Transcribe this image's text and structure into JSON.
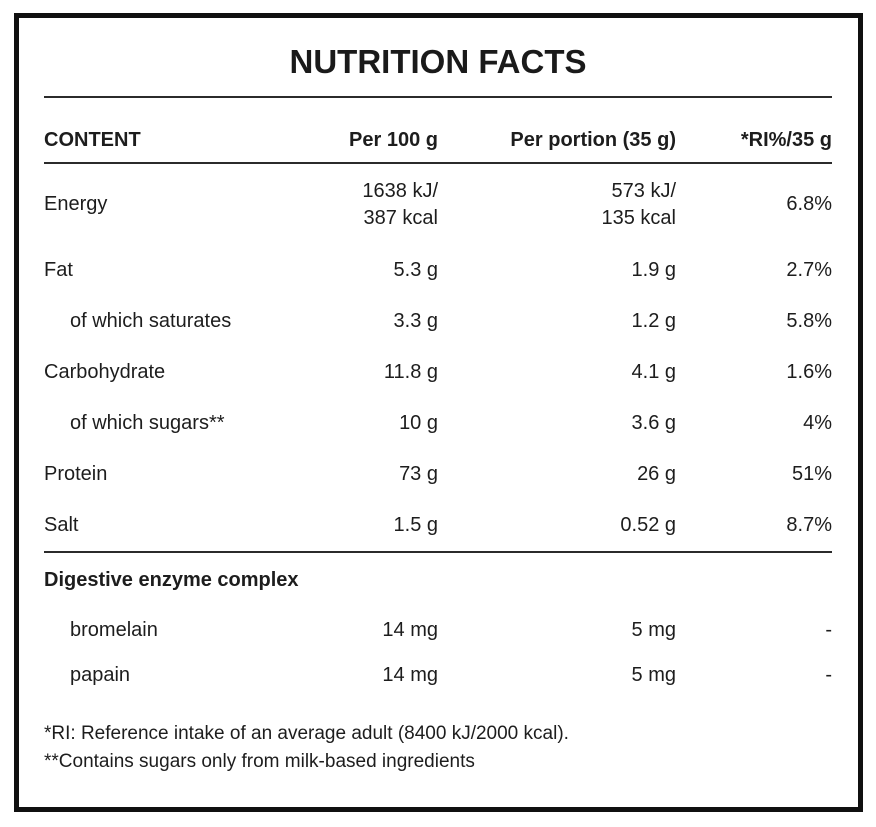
{
  "title": "NUTRITION FACTS",
  "colors": {
    "background": "#ffffff",
    "text": "#1d1d1d",
    "border": "#101010",
    "rule": "#2b2b2b"
  },
  "table": {
    "headers": [
      "CONTENT",
      "Per 100 g",
      "Per portion (35 g)",
      "*RI%/35 g"
    ],
    "rows": [
      {
        "label": "Energy",
        "per100": "1638 kJ/\n387 kcal",
        "portion": "573 kJ/\n135 kcal",
        "ri": "6.8%"
      },
      {
        "label": "Fat",
        "per100": "5.3 g",
        "portion": "1.9 g",
        "ri": "2.7%"
      },
      {
        "label": "of which saturates",
        "per100": "3.3 g",
        "portion": "1.2 g",
        "ri": "5.8%"
      },
      {
        "label": "Carbohydrate",
        "per100": "11.8 g",
        "portion": "4.1 g",
        "ri": "1.6%"
      },
      {
        "label": "of which sugars**",
        "per100": "10 g",
        "portion": "3.6 g",
        "ri": "4%"
      },
      {
        "label": "Protein",
        "per100": "73 g",
        "portion": "26 g",
        "ri": "51%"
      },
      {
        "label": "Salt",
        "per100": "1.5 g",
        "portion": "0.52 g",
        "ri": "8.7%"
      }
    ],
    "section": {
      "title": "Digestive enzyme complex",
      "rows": [
        {
          "label": "bromelain",
          "per100": "14 mg",
          "portion": "5 mg",
          "ri": "-"
        },
        {
          "label": "papain",
          "per100": "14 mg",
          "portion": "5 mg",
          "ri": "-"
        }
      ]
    }
  },
  "footnotes": [
    "*RI: Reference intake of an average adult (8400 kJ/2000 kcal).",
    "**Contains sugars only from milk-based ingredients"
  ]
}
